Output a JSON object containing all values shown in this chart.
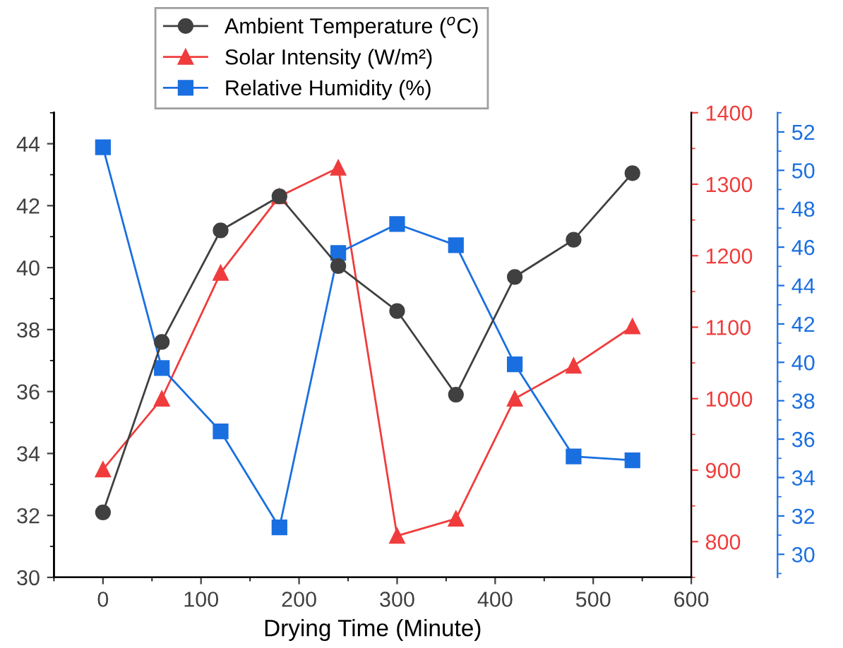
{
  "chart_data": {
    "type": "line",
    "xlabel": "Drying Time (Minute)",
    "x": [
      0,
      60,
      120,
      180,
      240,
      300,
      360,
      420,
      480,
      540
    ],
    "series": [
      {
        "name": "Ambient Temperature ($^{o}$C)",
        "color": "#404040",
        "marker": "circle",
        "values": [
          32.1,
          37.6,
          41.2,
          42.3,
          40.05,
          38.6,
          35.9,
          39.7,
          40.9,
          43.05
        ]
      },
      {
        "name": "Solar Intensity (W/m²)",
        "color": "#f03c3c",
        "marker": "triangle",
        "axis": "y2",
        "values": [
          901,
          1000,
          1176,
          1283,
          1323,
          808,
          832,
          1000,
          1046,
          1101
        ]
      },
      {
        "name": "Relative Humidity (%)",
        "color": "#1a6fe0",
        "marker": "square",
        "axis": "y3",
        "values": [
          51.2,
          39.7,
          36.4,
          31.4,
          45.7,
          47.2,
          46.1,
          39.9,
          35.1,
          34.9
        ]
      }
    ],
    "xlim": [
      -50,
      600
    ],
    "xticks": [
      0,
      100,
      200,
      300,
      400,
      500,
      600
    ],
    "ylim": [
      30,
      45
    ],
    "yticks": [
      30,
      32,
      34,
      36,
      38,
      40,
      42,
      44
    ],
    "y2lim": [
      750,
      1400
    ],
    "y2ticks": [
      800,
      900,
      1000,
      1100,
      1200,
      1300,
      1400
    ],
    "y3lim": [
      28.8,
      53
    ],
    "y3ticks": [
      30,
      32,
      34,
      36,
      38,
      40,
      42,
      44,
      46,
      48,
      50,
      52
    ],
    "grid": false,
    "legend": "top"
  }
}
